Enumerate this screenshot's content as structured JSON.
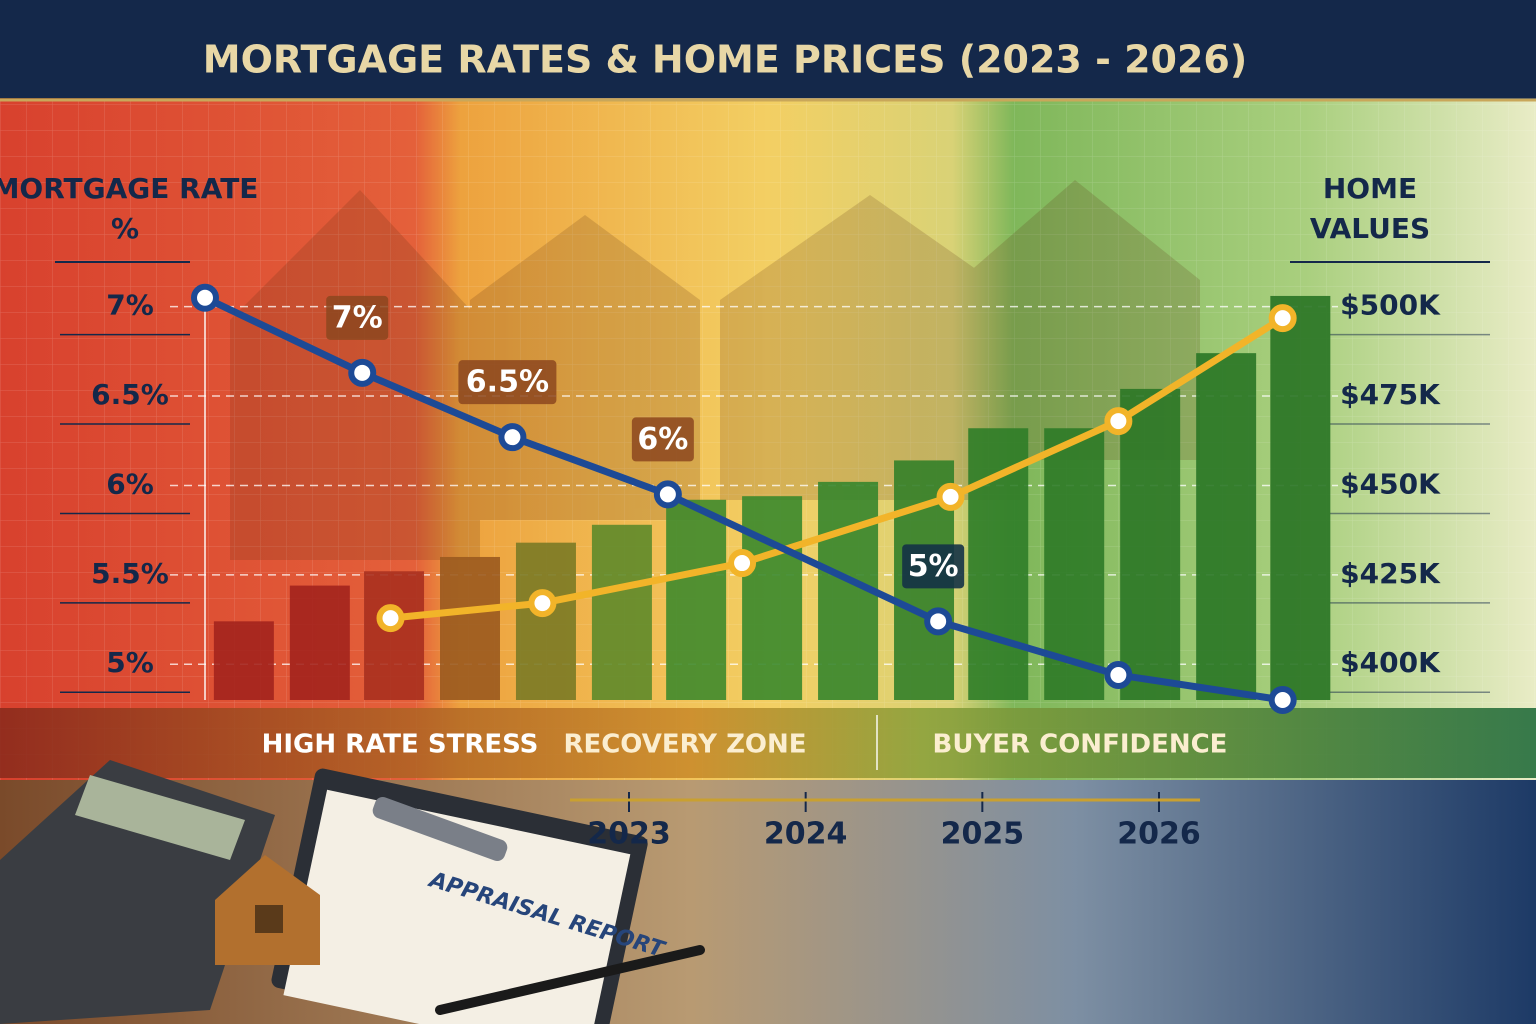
{
  "chart_data": {
    "type": "combo",
    "title": "MORTGAGE RATES & HOME PRICES (2023 - 2026)",
    "y_label": "MORTGAGE RATE %",
    "y2_label": "HOME VALUES",
    "xlim": [
      2020.6,
      2026.9
    ],
    "xticks": [
      2023,
      2024,
      2025,
      2026
    ],
    "ylim": [
      4.8,
      8.1
    ],
    "yticks": [
      {
        "value": 7,
        "label": "7%"
      },
      {
        "value": 6.5,
        "label": "6.5%"
      },
      {
        "value": 6,
        "label": "6%"
      },
      {
        "value": 5.5,
        "label": "5.5%"
      },
      {
        "value": 5,
        "label": "5%"
      }
    ],
    "y2lim": [
      390,
      555
    ],
    "y2ticks": [
      {
        "value": 500,
        "label": "$500K"
      },
      {
        "value": 475,
        "label": "$475K"
      },
      {
        "value": 450,
        "label": "$450K"
      },
      {
        "value": 425,
        "label": "$425K"
      },
      {
        "value": 400,
        "label": "$400K"
      }
    ],
    "grid": true,
    "series": [
      {
        "type": "bar",
        "axis": "y2",
        "colors": [
          "#a3241d",
          "#a3241d",
          "#a8301f",
          "#9a5a1f",
          "#7a7a25",
          "#5e8a2a",
          "#3f8a2c",
          "#3a882c",
          "#36852c",
          "#338029",
          "#2f7d28",
          "#2d7a27",
          "#2b7726",
          "#297525",
          "#287324"
        ],
        "x": [
          2020.82,
          2021.25,
          2021.67,
          2022.1,
          2022.53,
          2022.96,
          2023.38,
          2023.81,
          2024.24,
          2024.67,
          2025.09,
          2025.52,
          2025.95,
          2026.38,
          2026.8
        ],
        "values": [
          412,
          422,
          426,
          430,
          434,
          439,
          446,
          447,
          451,
          457,
          466,
          466,
          477,
          487,
          503
        ]
      },
      {
        "type": "line",
        "axis": "y2",
        "color": "#f2b429",
        "x": [
          2021.65,
          2022.51,
          2023.64,
          2024.82,
          2025.77,
          2026.7
        ],
        "values": [
          412.9,
          417.1,
          428.3,
          446.8,
          468,
          496.8
        ]
      },
      {
        "type": "line",
        "color": "#1d4a96",
        "x": [
          2020.6,
          2021.49,
          2022.34,
          2023.22,
          2024.75,
          2025.77,
          2026.7
        ],
        "values": [
          7.05,
          6.63,
          6.27,
          5.95,
          5.24,
          4.94,
          4.8
        ]
      }
    ],
    "annotations": [
      "7%",
      "6.5%",
      "6%",
      "5%"
    ],
    "zones": [
      "HIGH RATE STRESS",
      "RECOVERY ZONE",
      "BUYER CONFIDENCE"
    ]
  },
  "illustration": {
    "document_title": "APPRAISAL REPORT"
  }
}
